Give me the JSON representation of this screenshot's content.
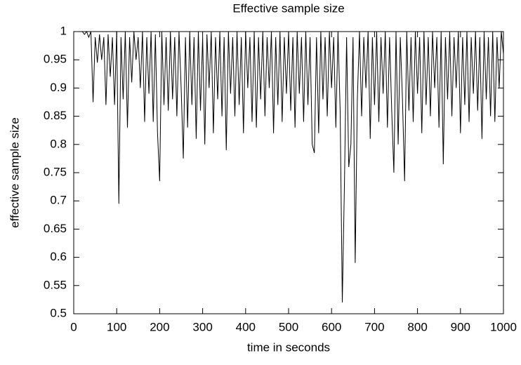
{
  "chart_data": {
    "type": "line",
    "title": "Effective sample size",
    "xlabel": "time in seconds",
    "ylabel": "effective sample size",
    "xlim": [
      0,
      1000
    ],
    "ylim": [
      0.5,
      1
    ],
    "xticks": [
      0,
      100,
      200,
      300,
      400,
      500,
      600,
      700,
      800,
      900,
      1000
    ],
    "yticks": [
      0.5,
      0.55,
      0.6,
      0.65,
      0.7,
      0.75,
      0.8,
      0.85,
      0.9,
      0.95,
      1
    ],
    "grid": false,
    "color": "#000000",
    "x": [
      20,
      25,
      30,
      35,
      40,
      45,
      50,
      55,
      60,
      65,
      70,
      75,
      80,
      85,
      90,
      95,
      100,
      105,
      110,
      115,
      120,
      125,
      130,
      135,
      140,
      145,
      150,
      155,
      160,
      165,
      170,
      175,
      180,
      185,
      190,
      195,
      200,
      205,
      210,
      215,
      220,
      225,
      230,
      235,
      240,
      245,
      250,
      255,
      260,
      265,
      270,
      275,
      280,
      285,
      290,
      295,
      300,
      305,
      310,
      315,
      320,
      325,
      330,
      335,
      340,
      345,
      350,
      355,
      360,
      365,
      370,
      375,
      380,
      385,
      390,
      395,
      400,
      405,
      410,
      415,
      420,
      425,
      430,
      435,
      440,
      445,
      450,
      455,
      460,
      465,
      470,
      475,
      480,
      485,
      490,
      495,
      500,
      505,
      510,
      515,
      520,
      525,
      530,
      535,
      540,
      545,
      550,
      555,
      560,
      565,
      570,
      575,
      580,
      585,
      590,
      595,
      600,
      605,
      610,
      615,
      620,
      625,
      630,
      635,
      640,
      645,
      650,
      655,
      660,
      665,
      670,
      675,
      680,
      685,
      690,
      695,
      700,
      705,
      710,
      715,
      720,
      725,
      730,
      735,
      740,
      745,
      750,
      755,
      760,
      765,
      770,
      775,
      780,
      785,
      790,
      795,
      800,
      805,
      810,
      815,
      820,
      825,
      830,
      835,
      840,
      845,
      850,
      855,
      860,
      865,
      870,
      875,
      880,
      885,
      890,
      895,
      900,
      905,
      910,
      915,
      920,
      925,
      930,
      935,
      940,
      945,
      950,
      955,
      960,
      965,
      970,
      975,
      980,
      985,
      990,
      995,
      1000
    ],
    "values": [
      1,
      0.995,
      1,
      0.99,
      1,
      0.875,
      0.99,
      0.945,
      0.995,
      0.95,
      0.99,
      0.87,
      0.995,
      0.92,
      0.99,
      0.87,
      1,
      0.695,
      0.99,
      0.88,
      1,
      0.83,
      0.99,
      0.91,
      1,
      0.95,
      0.99,
      0.9,
      1,
      0.84,
      0.99,
      0.89,
      1,
      0.84,
      0.995,
      0.82,
      0.735,
      1,
      0.87,
      0.99,
      0.86,
      1,
      0.88,
      0.99,
      0.85,
      1,
      0.9,
      0.775,
      0.99,
      0.83,
      1,
      0.87,
      0.99,
      0.81,
      1,
      0.86,
      0.99,
      0.8,
      0.995,
      0.9,
      1,
      0.82,
      0.99,
      0.88,
      1,
      0.85,
      0.99,
      0.79,
      1,
      0.89,
      0.99,
      0.85,
      1,
      0.87,
      0.99,
      0.82,
      1,
      0.9,
      0.99,
      0.84,
      1,
      0.83,
      0.99,
      0.88,
      1,
      0.85,
      0.99,
      0.9,
      1,
      0.82,
      0.99,
      0.87,
      1,
      0.84,
      0.99,
      0.89,
      1,
      0.86,
      0.99,
      0.83,
      1,
      0.89,
      0.99,
      0.84,
      1,
      0.87,
      0.99,
      0.8,
      0.785,
      0.99,
      0.82,
      1,
      0.88,
      0.99,
      0.85,
      1,
      0.9,
      0.99,
      0.83,
      1,
      0.86,
      0.52,
      0.73,
      0.99,
      0.76,
      0.8,
      0.99,
      0.59,
      0.88,
      1,
      0.85,
      0.99,
      0.9,
      1,
      0.81,
      0.99,
      0.87,
      1,
      0.84,
      0.99,
      0.89,
      1,
      0.83,
      0.99,
      0.86,
      0.75,
      1,
      0.8,
      0.99,
      0.88,
      0.735,
      1,
      0.86,
      0.99,
      0.84,
      1,
      0.89,
      0.99,
      0.82,
      1,
      0.87,
      0.99,
      0.85,
      1,
      0.9,
      0.99,
      0.83,
      1,
      0.765,
      0.99,
      0.88,
      1,
      0.85,
      0.99,
      0.9,
      1,
      0.82,
      0.99,
      0.87,
      1,
      0.84,
      0.99,
      0.89,
      1,
      0.86,
      0.99,
      0.81,
      1,
      0.88,
      0.99,
      0.85,
      1,
      0.84,
      0.99,
      0.9,
      1,
      0.96
    ]
  }
}
